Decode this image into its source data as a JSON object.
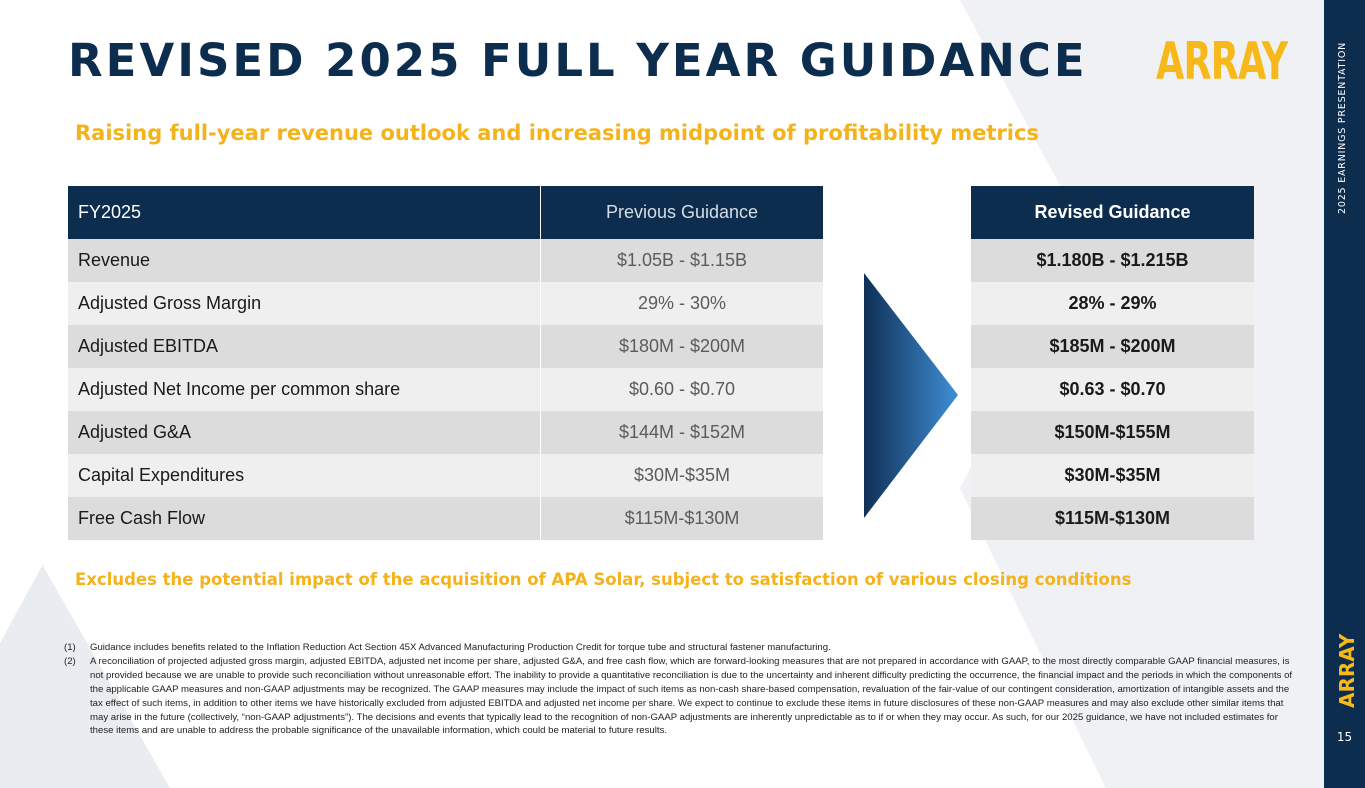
{
  "title": "REVISED 2025 FULL YEAR GUIDANCE",
  "logo": "ARRAY",
  "subtitle": "Raising full-year revenue outlook and increasing midpoint of profitability metrics",
  "table": {
    "headers": {
      "label": "FY2025",
      "previous": "Previous Guidance",
      "revised": "Revised Guidance"
    },
    "rows": [
      {
        "label": "Revenue",
        "previous": "$1.05B - $1.15B",
        "revised": "$1.180B - $1.215B"
      },
      {
        "label": "Adjusted Gross Margin",
        "previous": "29% - 30%",
        "revised": "28% - 29%"
      },
      {
        "label": "Adjusted EBITDA",
        "previous": "$180M - $200M",
        "revised": "$185M - $200M"
      },
      {
        "label": "Adjusted Net Income per common share",
        "previous": "$0.60 - $0.70",
        "revised": "$0.63 - $0.70"
      },
      {
        "label": "Adjusted G&A",
        "previous": "$144M - $152M",
        "revised": "$150M-$155M"
      },
      {
        "label": "Capital Expenditures",
        "previous": "$30M-$35M",
        "revised": "$30M-$35M"
      },
      {
        "label": "Free Cash Flow",
        "previous": "$115M-$130M",
        "revised": "$115M-$130M"
      }
    ]
  },
  "exclusion_note": "Excludes the potential impact of the acquisition of APA Solar, subject to satisfaction of various closing conditions",
  "footnotes": [
    {
      "num": "(1)",
      "text": "Guidance includes benefits related to the Inflation Reduction Act Section 45X Advanced Manufacturing Production Credit for torque tube and structural fastener manufacturing."
    },
    {
      "num": "(2)",
      "text": "A reconciliation of projected adjusted gross margin, adjusted EBITDA, adjusted net income per share, adjusted G&A, and free cash flow, which are forward-looking measures that are not prepared in accordance with GAAP, to the most directly comparable GAAP financial measures, is not provided because we are unable to provide such reconciliation without unreasonable effort. The inability to provide a quantitative reconciliation is due to the uncertainty and inherent difficulty predicting the occurrence, the financial impact and the periods in which the components of the applicable GAAP measures and non-GAAP adjustments may be recognized. The GAAP measures may include the impact of such items as non-cash share-based compensation, revaluation of the fair-value of our contingent consideration, amortization of intangible assets and the tax effect of such items, in addition to other items we have historically excluded from adjusted EBITDA and adjusted net income per share. We expect to continue to exclude these items in future disclosures of these non-GAAP measures and may also exclude other similar items that may arise in the future (collectively, “non-GAAP adjustments”). The decisions and events that typically lead to the recognition of non-GAAP adjustments are inherently unpredictable as to if or when they may occur. As such, for our 2025 guidance, we have not included estimates for these items and are unable to address the probable significance of the unavailable information, which could be material to future results."
    }
  ],
  "sidebar": {
    "label": "2025 EARNINGS PRESENTATION",
    "logo": "ARRAY",
    "page_number": "15"
  },
  "colors": {
    "navy": "#0d2d4e",
    "gold": "#f4b21b"
  }
}
